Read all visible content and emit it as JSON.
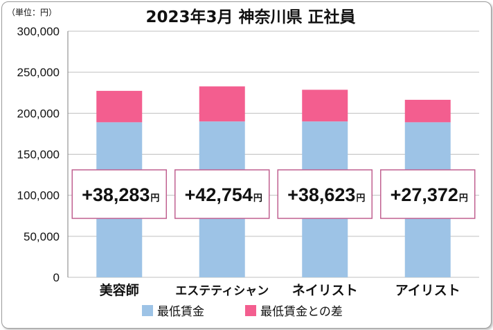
{
  "chart_data": {
    "type": "bar",
    "stacked": true,
    "title": "2023年3月 神奈川県 正社員",
    "unit_label": "（単位：円）",
    "categories": [
      "美容師",
      "エステティシャン",
      "ネイリスト",
      "アイリスト"
    ],
    "series": [
      {
        "name": "最低賃金",
        "values": [
          189000,
          190000,
          190000,
          189000
        ]
      },
      {
        "name": "最低賃金との差",
        "values": [
          38283,
          42754,
          38623,
          27372
        ]
      }
    ],
    "data_labels": [
      "+38,283",
      "+42,754",
      "+38,623",
      "+27,372"
    ],
    "data_label_unit": "円",
    "ylim": [
      0,
      300000
    ],
    "yticks": [
      0,
      50000,
      100000,
      150000,
      200000,
      250000,
      300000
    ],
    "ytick_labels": [
      "0",
      "50,000",
      "100,000",
      "150,000",
      "200,000",
      "250,000",
      "300,000"
    ],
    "grid": true,
    "legend_position": "bottom",
    "colors": {
      "base": "#9dc3e6",
      "diff": "#f35e8f",
      "label_border": "#c06090",
      "grid": "#bfbfbf"
    }
  }
}
